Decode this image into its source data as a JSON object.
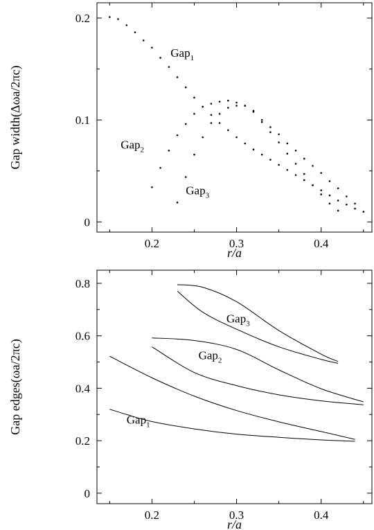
{
  "chart_data": [
    {
      "type": "scatter",
      "title": "",
      "xlabel": "r/a",
      "ylabel": "Gap width(Δωa/2πc)",
      "xlim": [
        0.135,
        0.46
      ],
      "ylim": [
        -0.01,
        0.215
      ],
      "xticks": [
        0.2,
        0.3,
        0.4
      ],
      "xtick_labels": [
        "0.2",
        "0.3",
        "0.4"
      ],
      "yticks": [
        0,
        0.1,
        0.2
      ],
      "ytick_labels": [
        "0",
        "0.1",
        "0.2"
      ],
      "grid": false,
      "legend": "none",
      "series": [
        {
          "points": [
            [
              0.15,
              0.201
            ],
            [
              0.16,
              0.199
            ],
            [
              0.17,
              0.193
            ],
            [
              0.18,
              0.186
            ],
            [
              0.19,
              0.178
            ],
            [
              0.2,
              0.171
            ],
            [
              0.21,
              0.161
            ],
            [
              0.22,
              0.152
            ],
            [
              0.23,
              0.142
            ],
            [
              0.24,
              0.132
            ],
            [
              0.25,
              0.122
            ],
            [
              0.26,
              0.113
            ],
            [
              0.27,
              0.105
            ],
            [
              0.28,
              0.097
            ],
            [
              0.29,
              0.09
            ],
            [
              0.3,
              0.083
            ],
            [
              0.31,
              0.077
            ],
            [
              0.32,
              0.071
            ],
            [
              0.33,
              0.066
            ],
            [
              0.34,
              0.061
            ],
            [
              0.35,
              0.056
            ],
            [
              0.36,
              0.051
            ],
            [
              0.37,
              0.046
            ],
            [
              0.38,
              0.041
            ],
            [
              0.39,
              0.036
            ],
            [
              0.4,
              0.031
            ],
            [
              0.41,
              0.026
            ],
            [
              0.42,
              0.021
            ],
            [
              0.43,
              0.017
            ],
            [
              0.44,
              0.013
            ],
            [
              0.45,
              0.01
            ]
          ]
        },
        {
          "points": [
            [
              0.2,
              0.034
            ],
            [
              0.21,
              0.053
            ],
            [
              0.22,
              0.07
            ],
            [
              0.23,
              0.085
            ],
            [
              0.24,
              0.096
            ],
            [
              0.25,
              0.106
            ],
            [
              0.26,
              0.113
            ],
            [
              0.27,
              0.116
            ],
            [
              0.28,
              0.118
            ],
            [
              0.29,
              0.119
            ],
            [
              0.3,
              0.117
            ],
            [
              0.31,
              0.114
            ],
            [
              0.32,
              0.108
            ],
            [
              0.33,
              0.1
            ],
            [
              0.34,
              0.093
            ],
            [
              0.35,
              0.086
            ],
            [
              0.36,
              0.077
            ],
            [
              0.37,
              0.07
            ],
            [
              0.38,
              0.062
            ],
            [
              0.39,
              0.055
            ],
            [
              0.4,
              0.048
            ],
            [
              0.41,
              0.04
            ],
            [
              0.42,
              0.033
            ],
            [
              0.43,
              0.025
            ],
            [
              0.44,
              0.018
            ]
          ]
        },
        {
          "points": [
            [
              0.23,
              0.019
            ],
            [
              0.24,
              0.044
            ],
            [
              0.25,
              0.066
            ],
            [
              0.26,
              0.083
            ],
            [
              0.27,
              0.097
            ],
            [
              0.28,
              0.106
            ],
            [
              0.29,
              0.112
            ],
            [
              0.3,
              0.114
            ],
            [
              0.31,
              0.114
            ],
            [
              0.32,
              0.109
            ],
            [
              0.33,
              0.098
            ],
            [
              0.34,
              0.088
            ],
            [
              0.35,
              0.078
            ],
            [
              0.36,
              0.067
            ],
            [
              0.37,
              0.057
            ],
            [
              0.38,
              0.047
            ],
            [
              0.39,
              0.036
            ],
            [
              0.4,
              0.027
            ],
            [
              0.41,
              0.018
            ],
            [
              0.42,
              0.011
            ]
          ]
        }
      ],
      "annotations": [
        {
          "text": "Gap",
          "subscript": "1",
          "x": 0.222,
          "y": 0.162
        },
        {
          "text": "Gap",
          "subscript": "2",
          "x": 0.163,
          "y": 0.072
        },
        {
          "text": "Gap",
          "subscript": "3",
          "x": 0.24,
          "y": 0.027
        }
      ]
    },
    {
      "type": "line",
      "title": "",
      "xlabel": "r/a",
      "ylabel": "Gap edges(ωa/2πc)",
      "xlim": [
        0.135,
        0.46
      ],
      "ylim": [
        -0.04,
        0.85
      ],
      "xticks": [
        0.2,
        0.3,
        0.4
      ],
      "xtick_labels": [
        "0.2",
        "0.3",
        "0.4"
      ],
      "yticks": [
        0,
        0.2,
        0.4,
        0.6,
        0.8
      ],
      "ytick_labels": [
        "0",
        "0.2",
        "0.4",
        "0.6",
        "0.8"
      ],
      "grid": false,
      "legend": "none",
      "series": [
        {
          "points": [
            [
              0.15,
              0.32
            ],
            [
              0.17,
              0.3
            ],
            [
              0.2,
              0.273
            ],
            [
              0.25,
              0.245
            ],
            [
              0.3,
              0.225
            ],
            [
              0.35,
              0.213
            ],
            [
              0.4,
              0.203
            ],
            [
              0.44,
              0.198
            ]
          ]
        },
        {
          "points": [
            [
              0.15,
              0.522
            ],
            [
              0.2,
              0.44
            ],
            [
              0.25,
              0.37
            ],
            [
              0.3,
              0.315
            ],
            [
              0.35,
              0.272
            ],
            [
              0.4,
              0.235
            ],
            [
              0.44,
              0.205
            ]
          ]
        },
        {
          "points": [
            [
              0.2,
              0.558
            ],
            [
              0.25,
              0.46
            ],
            [
              0.3,
              0.41
            ],
            [
              0.35,
              0.375
            ],
            [
              0.4,
              0.352
            ],
            [
              0.45,
              0.337
            ]
          ]
        },
        {
          "points": [
            [
              0.2,
              0.592
            ],
            [
              0.25,
              0.582
            ],
            [
              0.3,
              0.548
            ],
            [
              0.35,
              0.47
            ],
            [
              0.4,
              0.398
            ],
            [
              0.45,
              0.348
            ]
          ]
        },
        {
          "points": [
            [
              0.23,
              0.77
            ],
            [
              0.26,
              0.69
            ],
            [
              0.3,
              0.625
            ],
            [
              0.35,
              0.558
            ],
            [
              0.4,
              0.51
            ],
            [
              0.42,
              0.495
            ]
          ]
        },
        {
          "points": [
            [
              0.23,
              0.795
            ],
            [
              0.26,
              0.785
            ],
            [
              0.3,
              0.73
            ],
            [
              0.35,
              0.62
            ],
            [
              0.4,
              0.53
            ],
            [
              0.42,
              0.502
            ]
          ]
        }
      ],
      "annotations": [
        {
          "text": "Gap",
          "subscript": "1",
          "x": 0.17,
          "y": 0.265
        },
        {
          "text": "Gap",
          "subscript": "2",
          "x": 0.255,
          "y": 0.51
        },
        {
          "text": "Gap",
          "subscript": "3",
          "x": 0.288,
          "y": 0.65
        }
      ]
    }
  ]
}
